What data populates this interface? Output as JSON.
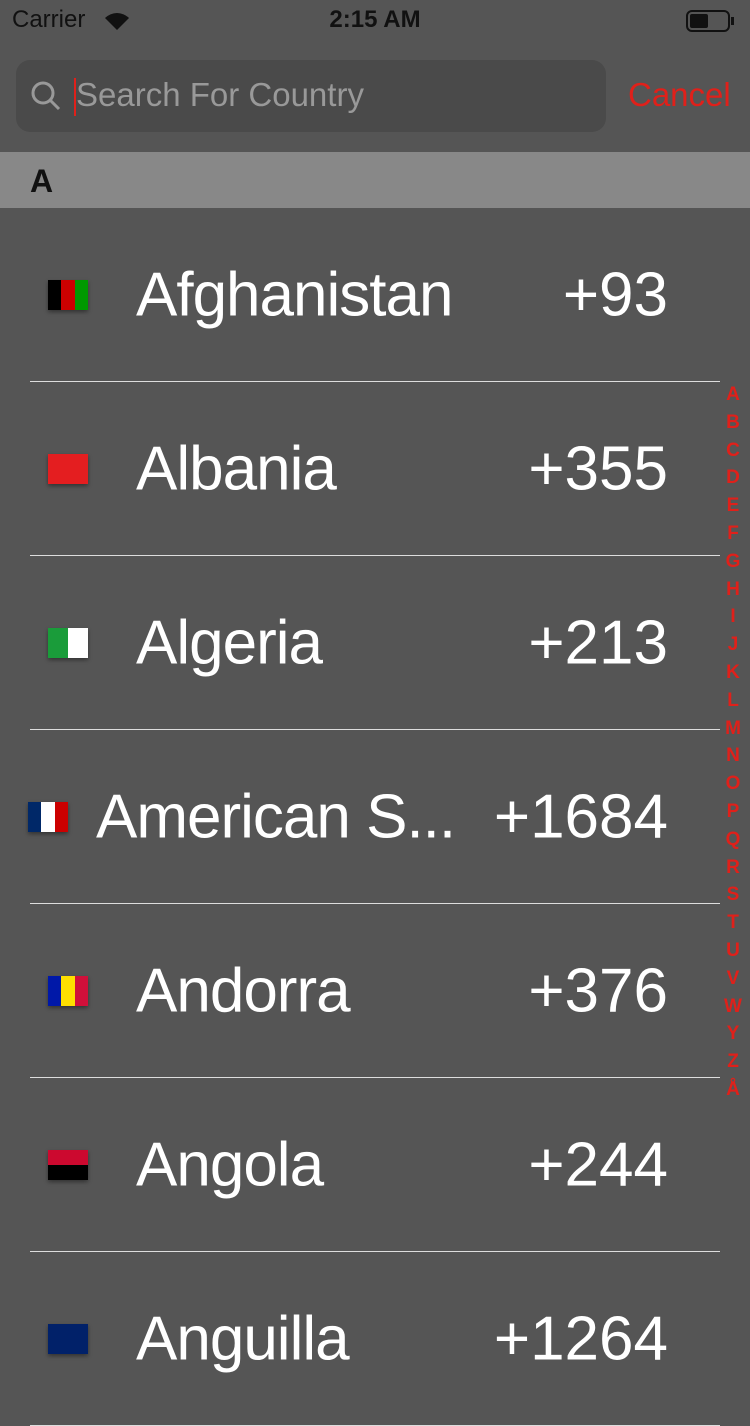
{
  "status_bar": {
    "carrier": "Carrier",
    "time": "2:15 AM"
  },
  "search": {
    "placeholder": "Search For Country",
    "cancel": "Cancel"
  },
  "section": {
    "title": "A"
  },
  "rows": [
    {
      "name": "Afghanistan",
      "code": "+93"
    },
    {
      "name": "Albania",
      "code": "+355"
    },
    {
      "name": "Algeria",
      "code": "+213"
    },
    {
      "name": "American S...",
      "code": "+1684"
    },
    {
      "name": "Andorra",
      "code": "+376"
    },
    {
      "name": "Angola",
      "code": "+244"
    },
    {
      "name": "Anguilla",
      "code": "+1264"
    }
  ],
  "index": [
    "A",
    "B",
    "C",
    "D",
    "E",
    "F",
    "G",
    "H",
    "I",
    "J",
    "K",
    "L",
    "M",
    "N",
    "O",
    "P",
    "Q",
    "R",
    "S",
    "T",
    "U",
    "V",
    "W",
    "Y",
    "Z",
    "Å"
  ]
}
